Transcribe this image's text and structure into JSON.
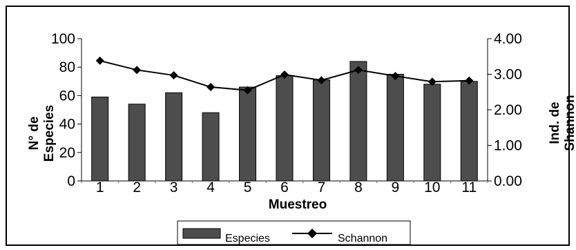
{
  "chart_data": {
    "type": "bar",
    "categories": [
      "1",
      "2",
      "3",
      "4",
      "5",
      "6",
      "7",
      "8",
      "9",
      "10",
      "11"
    ],
    "series": [
      {
        "name": "Especies",
        "type": "bar",
        "axis": "left",
        "values": [
          59,
          54,
          62,
          48,
          66,
          74,
          71,
          84,
          75,
          68,
          70
        ]
      },
      {
        "name": "Schannon",
        "type": "line",
        "axis": "right",
        "values": [
          3.38,
          3.12,
          2.97,
          2.64,
          2.55,
          2.99,
          2.83,
          3.12,
          2.95,
          2.79,
          2.82
        ]
      }
    ],
    "xlabel": "Muestreo",
    "ylabel_left_lines": [
      "N° de",
      "Especies"
    ],
    "ylabel_right_lines": [
      "Ind. de",
      "Shannon"
    ],
    "ylim_left": [
      0,
      100
    ],
    "ylim_right": [
      0,
      4
    ],
    "yticks_left": [
      "0",
      "20",
      "40",
      "60",
      "80",
      "100"
    ],
    "yticks_right": [
      "0.00",
      "1.00",
      "2.00",
      "3.00",
      "4.00"
    ],
    "grid": false,
    "legend_position": "bottom",
    "colors": {
      "bar": "#4d4d4d",
      "line": "#000000",
      "frame": "#000000"
    }
  }
}
